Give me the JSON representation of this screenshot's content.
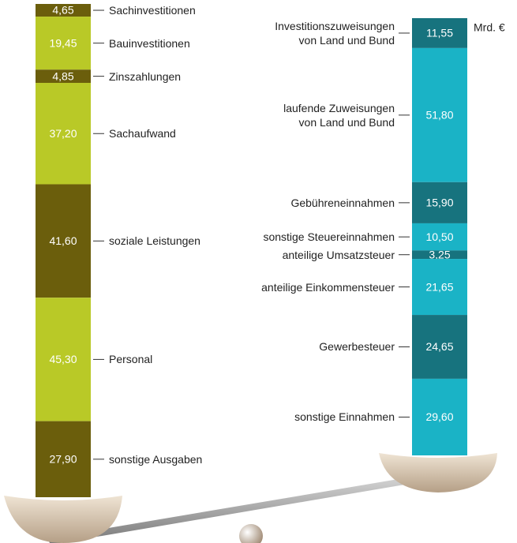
{
  "chart_data": {
    "type": "bar",
    "unit": "Mrd. €",
    "bars": [
      {
        "categories": [
          "Sachinvestitionen",
          "Bauinvestitionen",
          "Zinszahlungen",
          "Sachaufwand",
          "soziale Leistungen",
          "Personal",
          "sonstige Ausgaben"
        ],
        "values": [
          4.65,
          19.45,
          4.85,
          37.2,
          41.6,
          45.3,
          27.9
        ],
        "value_labels": [
          "4,65",
          "19,45",
          "4,85",
          "37,20",
          "41,60",
          "45,30",
          "27,90"
        ],
        "colors": [
          "#6b5e0c",
          "#b9c927",
          "#6b5e0c",
          "#b9c927",
          "#6b5e0c",
          "#b9c927",
          "#6b5e0c"
        ]
      },
      {
        "categories": [
          "Investitionszuweisungen\nvon Land und Bund",
          "laufende Zuweisungen\nvon Land und Bund",
          "Gebühreneinnahmen",
          "sonstige Steuereinnahmen",
          "anteilige Umsatzsteuer",
          "anteilige Einkommensteuer",
          "Gewerbesteuer",
          "sonstige Einnahmen"
        ],
        "values": [
          11.55,
          51.8,
          15.9,
          10.5,
          3.25,
          21.65,
          24.65,
          29.6
        ],
        "value_labels": [
          "11,55",
          "51,80",
          "15,90",
          "10,50",
          "3,25",
          "21,65",
          "24,65",
          "29,60"
        ],
        "colors": [
          "#17737e",
          "#1ab3c6",
          "#17737e",
          "#1ab3c6",
          "#17737e",
          "#1ab3c6",
          "#17737e",
          "#1ab3c6"
        ]
      }
    ]
  }
}
